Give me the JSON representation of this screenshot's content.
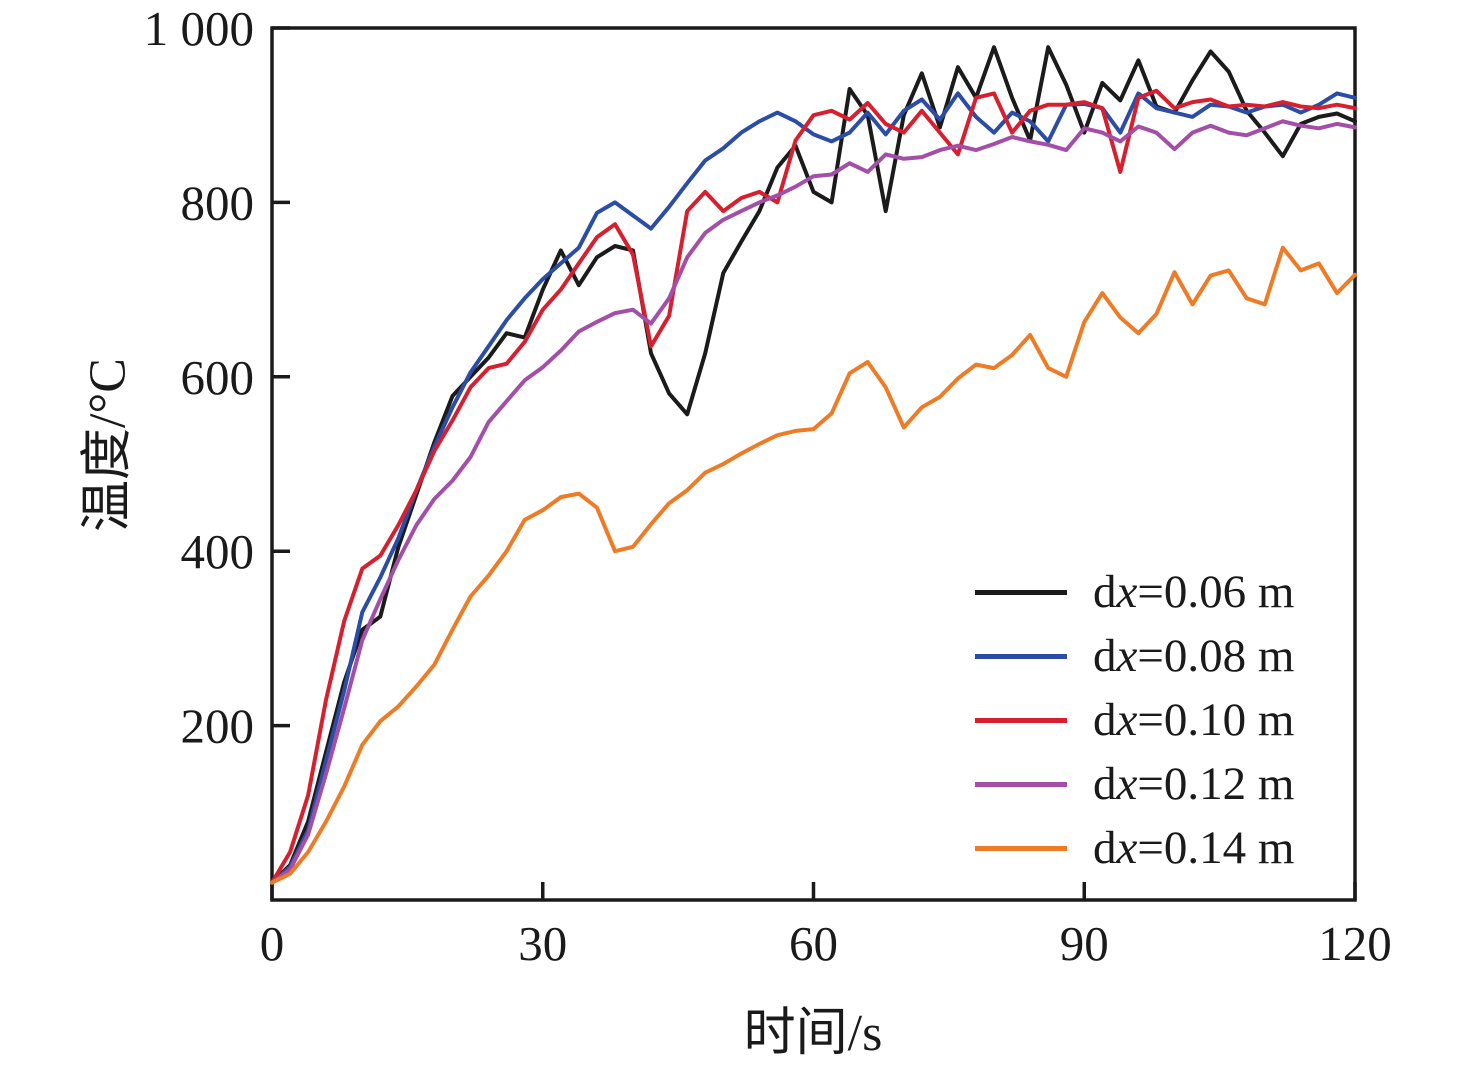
{
  "chart_data": {
    "type": "line",
    "title": "",
    "xlabel": "时间/s",
    "ylabel": "温度/°C",
    "xlim": [
      0,
      120
    ],
    "ylim": [
      0,
      1000
    ],
    "xticks": [
      0,
      30,
      60,
      90,
      120
    ],
    "xtick_labels": [
      "0",
      "30",
      "60",
      "90",
      "120"
    ],
    "yticks": [
      200,
      400,
      600,
      800,
      1000
    ],
    "ytick_labels": [
      "200",
      "400",
      "600",
      "800",
      "1 000"
    ],
    "grid": false,
    "legend_position": "lower-right-inside",
    "x": [
      0,
      2,
      4,
      6,
      8,
      10,
      12,
      14,
      16,
      18,
      20,
      22,
      24,
      26,
      28,
      30,
      32,
      34,
      36,
      38,
      40,
      42,
      44,
      46,
      48,
      50,
      52,
      54,
      56,
      58,
      60,
      62,
      64,
      66,
      68,
      70,
      72,
      74,
      76,
      78,
      80,
      82,
      84,
      86,
      88,
      90,
      92,
      94,
      96,
      98,
      100,
      102,
      104,
      106,
      108,
      110,
      112,
      114,
      116,
      118,
      120
    ],
    "series": [
      {
        "name": "dx=0.06 m",
        "color": "#1b1b1b",
        "values": [
          20,
          40,
          90,
          170,
          250,
          310,
          325,
          405,
          465,
          525,
          578,
          600,
          622,
          650,
          645,
          700,
          745,
          705,
          737,
          750,
          745,
          627,
          581,
          557,
          627,
          719,
          755,
          790,
          840,
          865,
          812,
          800,
          930,
          900,
          790,
          900,
          948,
          886,
          955,
          920,
          978,
          920,
          871,
          978,
          935,
          880,
          937,
          917,
          963,
          910,
          903,
          940,
          973,
          950,
          905,
          880,
          853,
          890,
          898,
          902,
          893
        ]
      },
      {
        "name": "dx=0.08 m",
        "color": "#2b4da6",
        "values": [
          20,
          38,
          80,
          160,
          240,
          330,
          370,
          415,
          470,
          520,
          565,
          605,
          635,
          665,
          690,
          712,
          730,
          748,
          788,
          800,
          785,
          770,
          795,
          822,
          848,
          862,
          880,
          893,
          903,
          893,
          878,
          870,
          880,
          903,
          878,
          905,
          918,
          895,
          925,
          898,
          880,
          903,
          893,
          870,
          912,
          913,
          908,
          880,
          925,
          908,
          903,
          898,
          912,
          910,
          903,
          910,
          912,
          903,
          912,
          925,
          920
        ]
      },
      {
        "name": "dx=0.10 m",
        "color": "#d6202f",
        "values": [
          20,
          55,
          120,
          230,
          320,
          380,
          395,
          430,
          470,
          515,
          550,
          588,
          610,
          615,
          640,
          677,
          700,
          730,
          760,
          775,
          740,
          635,
          670,
          790,
          812,
          790,
          805,
          812,
          800,
          871,
          900,
          905,
          895,
          914,
          890,
          880,
          905,
          880,
          855,
          920,
          925,
          880,
          905,
          912,
          912,
          915,
          908,
          835,
          920,
          928,
          908,
          915,
          918,
          910,
          912,
          910,
          915,
          910,
          908,
          912,
          908
        ]
      },
      {
        "name": "dx=0.12 m",
        "color": "#a34fa8",
        "values": [
          20,
          35,
          75,
          145,
          220,
          298,
          345,
          390,
          430,
          460,
          481,
          508,
          548,
          572,
          596,
          611,
          630,
          652,
          663,
          673,
          677,
          661,
          690,
          737,
          765,
          780,
          790,
          800,
          808,
          818,
          830,
          832,
          845,
          835,
          855,
          850,
          852,
          860,
          865,
          860,
          867,
          875,
          870,
          866,
          860,
          885,
          880,
          870,
          887,
          880,
          861,
          880,
          888,
          880,
          877,
          885,
          893,
          888,
          885,
          890,
          886
        ]
      },
      {
        "name": "dx=0.14 m",
        "color": "#ee7c26",
        "values": [
          20,
          30,
          55,
          90,
          130,
          178,
          205,
          222,
          245,
          270,
          310,
          348,
          372,
          400,
          436,
          447,
          462,
          466,
          450,
          400,
          405,
          431,
          455,
          470,
          490,
          500,
          512,
          523,
          533,
          538,
          540,
          558,
          604,
          617,
          588,
          542,
          565,
          577,
          598,
          614,
          610,
          625,
          648,
          610,
          600,
          663,
          696,
          668,
          650,
          672,
          720,
          683,
          716,
          722,
          690,
          683,
          748,
          722,
          730,
          696,
          717
        ]
      }
    ]
  },
  "legend": {
    "items": [
      {
        "pre": "d",
        "var": "x",
        "post": "=0.06 m"
      },
      {
        "pre": "d",
        "var": "x",
        "post": "=0.08 m"
      },
      {
        "pre": "d",
        "var": "x",
        "post": "=0.10 m"
      },
      {
        "pre": "d",
        "var": "x",
        "post": "=0.12 m"
      },
      {
        "pre": "d",
        "var": "x",
        "post": "=0.14 m"
      }
    ]
  },
  "axis_color": "#1a1a1a"
}
